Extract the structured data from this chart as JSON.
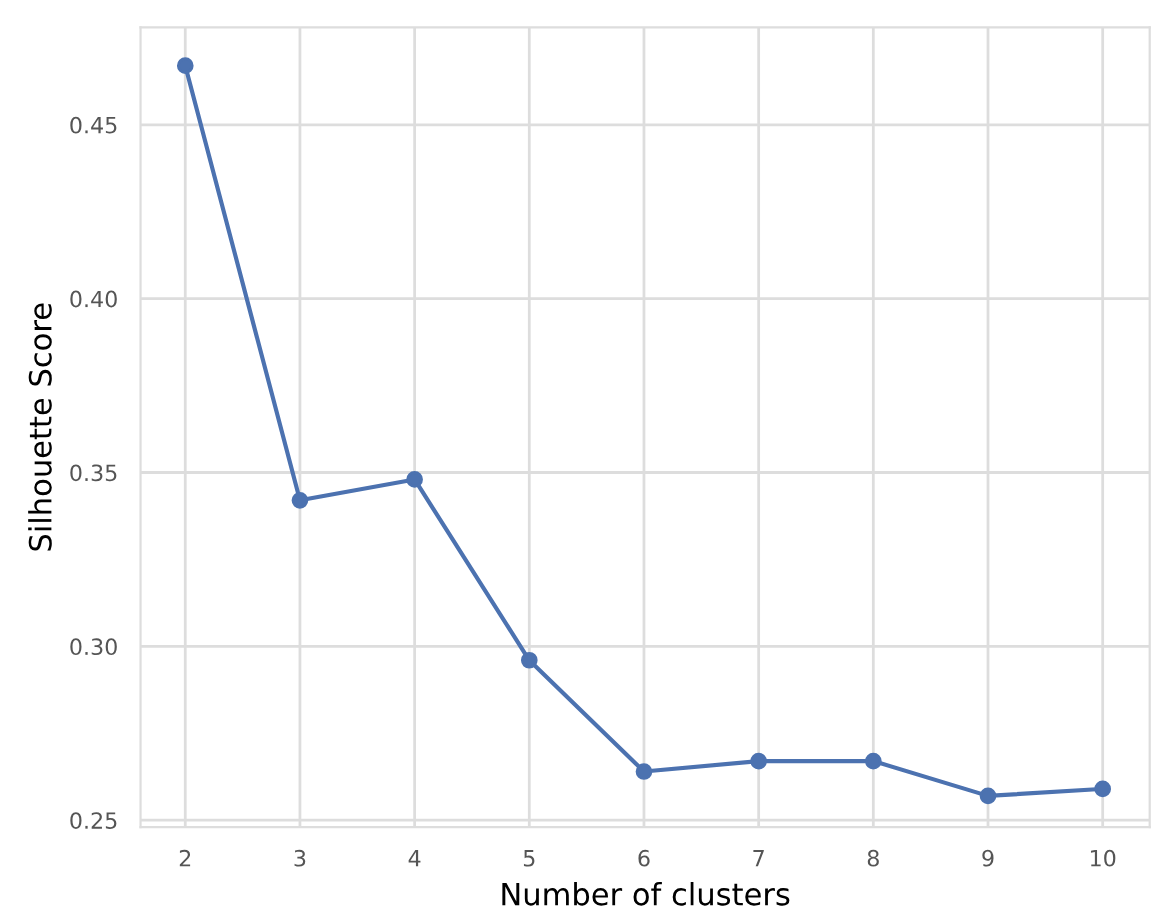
{
  "chart_data": {
    "type": "line",
    "xlabel": "Number of clusters",
    "ylabel": "Silhouette Score",
    "x": [
      2,
      3,
      4,
      5,
      6,
      7,
      8,
      9,
      10
    ],
    "series": [
      {
        "color": "#4c72b0",
        "values": [
          0.467,
          0.342,
          0.348,
          0.296,
          0.264,
          0.267,
          0.267,
          0.257,
          0.259
        ]
      }
    ],
    "xlim": [
      1.61,
      10.41
    ],
    "ylim": [
      0.248,
      0.478
    ],
    "xticks": [
      2,
      3,
      4,
      5,
      6,
      7,
      8,
      9,
      10
    ],
    "yticks": [
      0.25,
      {
        "value": 0.3,
        "label": "0.30"
      },
      0.35,
      {
        "value": 0.4,
        "label": "0.40"
      },
      0.45
    ],
    "grid": true,
    "marker": "circle",
    "line_style": "solid"
  }
}
